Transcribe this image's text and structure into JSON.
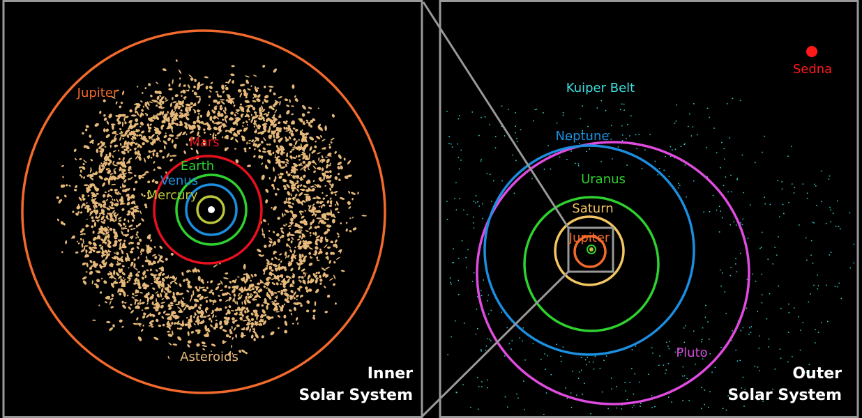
{
  "inner": {
    "title": [
      "Inner",
      "Solar System"
    ],
    "labels": {
      "jupiter": "Jupiter",
      "mars": "Mars",
      "earth": "Earth",
      "venus": "Venus",
      "mercury": "Mercury",
      "asteroids": "Asteroids"
    }
  },
  "outer": {
    "title": [
      "Outer",
      "Solar System"
    ],
    "labels": {
      "sedna": "Sedna",
      "kuiper": "Kuiper Belt",
      "neptune": "Neptune",
      "uranus": "Uranus",
      "saturn": "Saturn",
      "jupiter": "Jupiter",
      "pluto": "Pluto"
    }
  }
}
